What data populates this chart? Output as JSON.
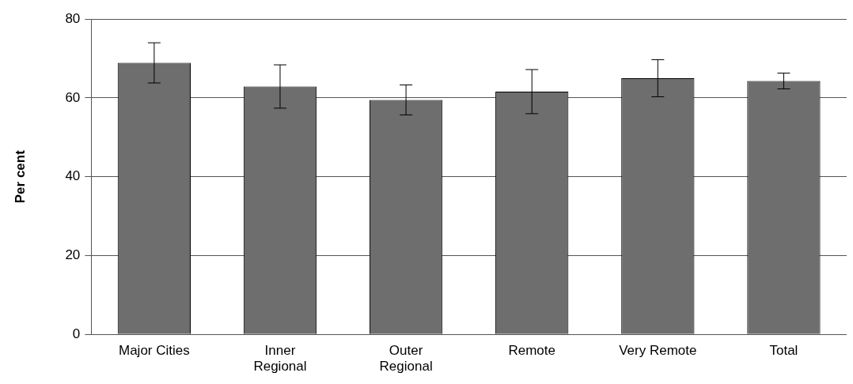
{
  "chart_data": {
    "type": "bar",
    "ylabel": "Per cent",
    "categories": [
      "Major Cities",
      "Inner\nRegional",
      "Outer\nRegional",
      "Remote",
      "Very Remote",
      "Total"
    ],
    "values": [
      68.9,
      62.9,
      59.5,
      61.6,
      65.0,
      64.3
    ],
    "errors": [
      5.1,
      5.5,
      3.8,
      5.6,
      4.7,
      2.0
    ],
    "color": "#6e6e6e",
    "ylim": [
      0,
      80
    ],
    "yticks": [
      0,
      20,
      40,
      60,
      80
    ],
    "grid": "y",
    "legend": false
  }
}
